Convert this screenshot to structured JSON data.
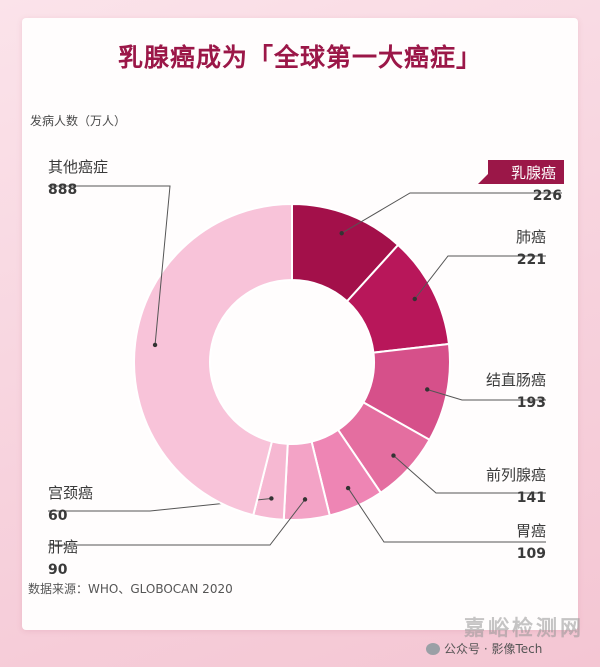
{
  "title": "乳腺癌成为「全球第一大癌症」",
  "source": "数据来源：WHO、GLOBOCAN 2020",
  "watermark": "嘉峪检测网",
  "wechat": "公众号 · 影像Tech",
  "chart_data": {
    "type": "pie",
    "donut": true,
    "ylabel": "发病人数（万人）",
    "slices": [
      {
        "label": "乳腺癌",
        "value": 226,
        "color": "#a3104a",
        "highlight": true
      },
      {
        "label": "肺癌",
        "value": 221,
        "color": "#b8175a"
      },
      {
        "label": "结直肠癌",
        "value": 193,
        "color": "#d6508a"
      },
      {
        "label": "前列腺癌",
        "value": 141,
        "color": "#e46ea0"
      },
      {
        "label": "胃癌",
        "value": 109,
        "color": "#ee85b4"
      },
      {
        "label": "肝癌",
        "value": 90,
        "color": "#f3a3c6"
      },
      {
        "label": "宫颈癌",
        "value": 60,
        "color": "#f6b8d2"
      },
      {
        "label": "其他癌症",
        "value": 888,
        "color": "#f8c3d9"
      }
    ]
  }
}
